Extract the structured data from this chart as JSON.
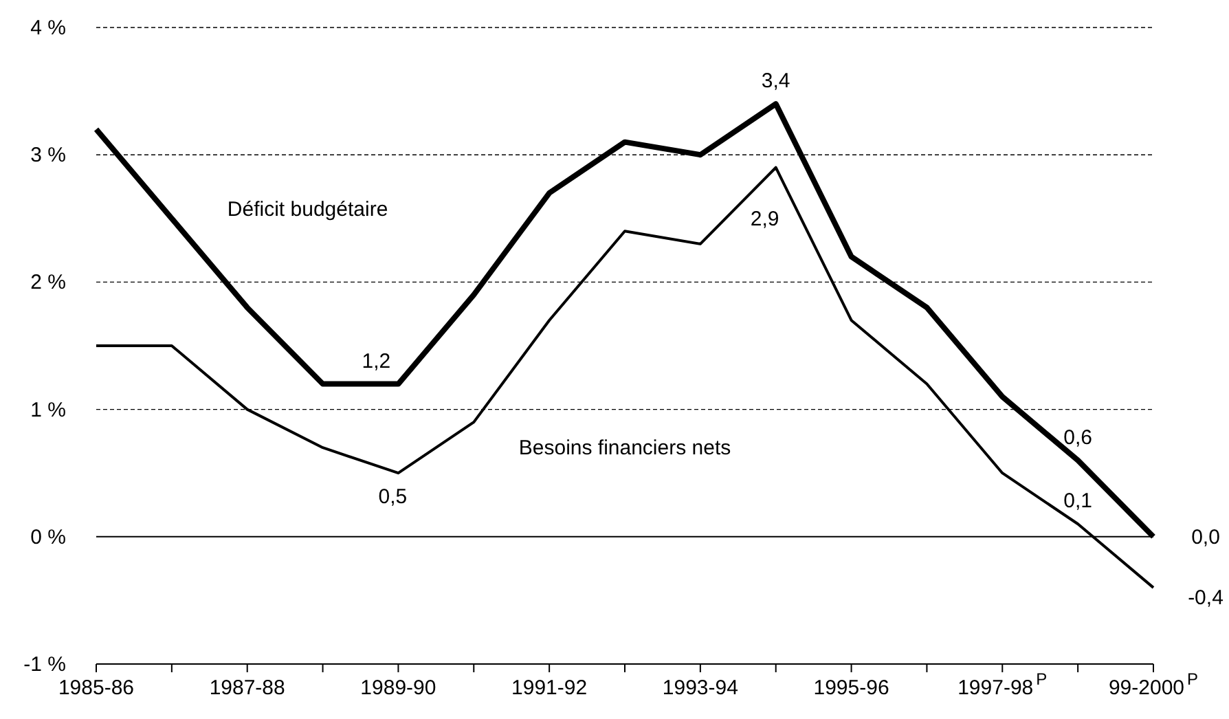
{
  "chart_data": {
    "type": "line",
    "categories": [
      "1985-86",
      null,
      "1987-88",
      null,
      "1989-90",
      null,
      "1991-92",
      null,
      "1993-94",
      null,
      "1995-96",
      null,
      "1997-98$^{P}$",
      null,
      "99-2000$^{P}$"
    ],
    "series": [
      {
        "name": "Déficit budgétaire",
        "color": "#000000",
        "values": [
          3.2,
          2.5,
          1.8,
          1.2,
          1.2,
          1.9,
          2.7,
          3.1,
          3.0,
          3.4,
          2.2,
          1.8,
          1.1,
          0.6,
          0.0
        ],
        "value_labels": [
          null,
          null,
          null,
          null,
          "1,2",
          null,
          null,
          null,
          null,
          "3,4",
          null,
          null,
          null,
          "0,6",
          "0,0"
        ]
      },
      {
        "name": "Besoins financiers nets",
        "color": "#000000",
        "values": [
          1.5,
          1.5,
          1.0,
          0.7,
          0.5,
          0.9,
          1.7,
          2.4,
          2.3,
          2.9,
          1.7,
          1.2,
          0.5,
          0.1,
          -0.4
        ],
        "value_labels": [
          null,
          null,
          null,
          null,
          "0,5",
          null,
          null,
          null,
          null,
          "2,9",
          null,
          null,
          null,
          "0,1",
          "-0,4"
        ]
      }
    ],
    "ylim": [
      -1,
      4
    ],
    "yticks": [
      {
        "value": -1,
        "label": "-1 %"
      },
      {
        "value": 0,
        "label": "0 %"
      },
      {
        "value": 1,
        "label": "1 %"
      },
      {
        "value": 2,
        "label": "2 %"
      },
      {
        "value": 3,
        "label": "3 %"
      },
      {
        "value": 4,
        "label": "4 %"
      }
    ],
    "grid": "y",
    "legend": false,
    "marker": "none",
    "line_style": "solid"
  }
}
